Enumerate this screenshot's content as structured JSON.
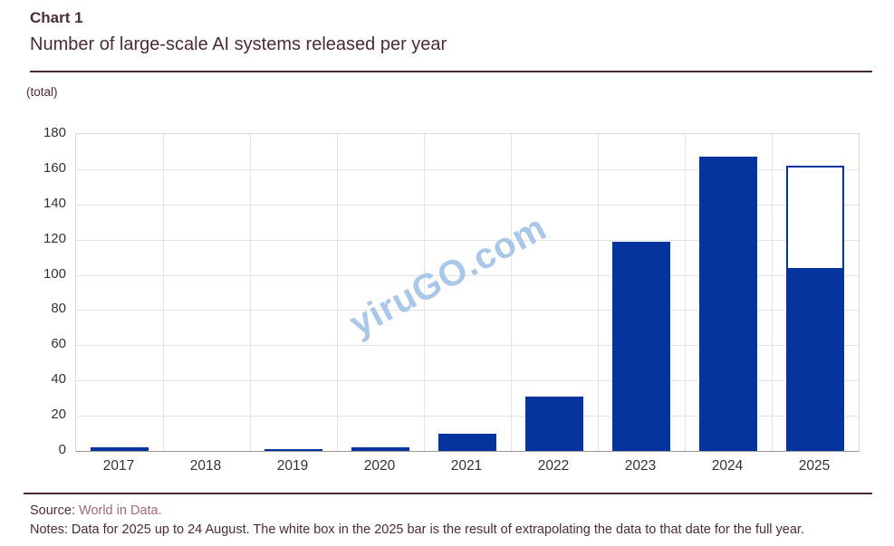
{
  "header": {
    "kicker": "Chart 1",
    "title": "Number of large-scale AI systems released per year",
    "unit_label": "(total)"
  },
  "watermark": "yiruGO.com",
  "chart_data": {
    "type": "bar",
    "title": "Number of large-scale AI systems released per year",
    "xlabel": "",
    "ylabel": "(total)",
    "ylim": [
      0,
      180
    ],
    "y_ticks": [
      0,
      20,
      40,
      60,
      80,
      100,
      120,
      140,
      160,
      180
    ],
    "grid": "both",
    "legend": "none",
    "categories": [
      "2017",
      "2018",
      "2019",
      "2020",
      "2021",
      "2022",
      "2023",
      "2024",
      "2025"
    ],
    "values": [
      2,
      0,
      1,
      2,
      10,
      31,
      119,
      167,
      104
    ],
    "extrapolation": {
      "year": "2025",
      "actual_value": 104,
      "full_year_estimate": 162,
      "style": "white box outlined in blue stacked above the actual value"
    }
  },
  "footer": {
    "source_label": "Source:",
    "source_link": "World in Data.",
    "notes": "Notes: Data for 2025 up to 24 August. The white box in the 2025 bar is the result of extrapolating the data to that date for the full year."
  },
  "colors": {
    "bar_blue": "#05349e",
    "heading_maroon": "#4d2b36",
    "source_link_mauve": "#a06a76",
    "watermark_blue": "#a9c8e9",
    "axis_text": "#333333",
    "gridline": "#e4e4e4"
  }
}
